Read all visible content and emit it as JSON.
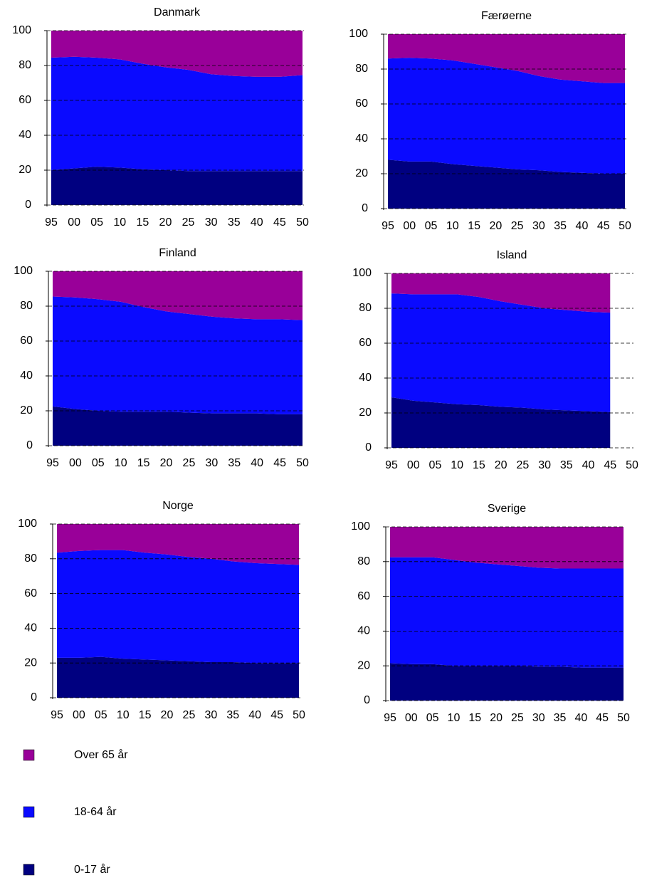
{
  "chart_data": [
    {
      "type": "stacked_area",
      "title": "Danmark",
      "categories": [
        "95",
        "00",
        "05",
        "10",
        "15",
        "20",
        "25",
        "30",
        "35",
        "40",
        "45",
        "50"
      ],
      "series": [
        {
          "name": "0-17 år",
          "color": "#000080",
          "values": [
            20,
            21,
            22,
            21.5,
            20.5,
            20,
            19.5,
            19.5,
            19.5,
            19.5,
            19.5,
            19.5
          ]
        },
        {
          "name": "18-64 år",
          "color": "#0a0aff",
          "values": [
            64.5,
            64,
            62.5,
            62,
            60.5,
            59,
            58,
            55.5,
            54.5,
            54,
            54,
            55
          ]
        },
        {
          "name": "Over 65 år",
          "color": "#990099",
          "values": [
            15.5,
            15,
            15.5,
            16.5,
            19,
            21,
            22.5,
            25,
            26,
            26.5,
            26.5,
            25.5
          ]
        }
      ],
      "ylim": [
        0,
        100
      ],
      "yticks": [
        0,
        20,
        40,
        60,
        80,
        100
      ],
      "grid": true
    },
    {
      "type": "stacked_area",
      "title": "Færøerne",
      "categories": [
        "95",
        "00",
        "05",
        "10",
        "15",
        "20",
        "25",
        "30",
        "35",
        "40",
        "45",
        "50"
      ],
      "series": [
        {
          "name": "0-17 år",
          "color": "#000080",
          "values": [
            28,
            27,
            27,
            25.5,
            24.5,
            23.5,
            22.5,
            22,
            21,
            20.5,
            20,
            20
          ]
        },
        {
          "name": "18-64 år",
          "color": "#0a0aff",
          "values": [
            58,
            59.5,
            59,
            59.5,
            58.5,
            57.5,
            56.5,
            54,
            53,
            52.5,
            52,
            52
          ]
        },
        {
          "name": "Over 65 år",
          "color": "#990099",
          "values": [
            14,
            13.5,
            14,
            15,
            17,
            19,
            21,
            24,
            26,
            27,
            28,
            28
          ]
        }
      ],
      "ylim": [
        0,
        100
      ],
      "yticks": [
        0,
        20,
        40,
        60,
        80,
        100
      ],
      "grid": true
    },
    {
      "type": "stacked_area",
      "title": "Finland",
      "categories": [
        "95",
        "00",
        "05",
        "10",
        "15",
        "20",
        "25",
        "30",
        "35",
        "40",
        "45",
        "50"
      ],
      "series": [
        {
          "name": "0-17 år",
          "color": "#000080",
          "values": [
            22.5,
            21,
            20,
            19.5,
            19.5,
            19.5,
            19,
            18.5,
            18.5,
            18.5,
            18,
            18
          ]
        },
        {
          "name": "18-64 år",
          "color": "#0a0aff",
          "values": [
            63,
            64,
            64,
            63,
            60,
            57.5,
            56.5,
            55.5,
            54.5,
            54,
            54.5,
            54
          ]
        },
        {
          "name": "Over 65 år",
          "color": "#990099",
          "values": [
            14.5,
            15,
            16,
            17.5,
            20.5,
            23,
            24.5,
            26,
            27,
            27.5,
            27.5,
            28
          ]
        }
      ],
      "ylim": [
        0,
        100
      ],
      "yticks": [
        0,
        20,
        40,
        60,
        80,
        100
      ],
      "grid": true
    },
    {
      "type": "stacked_area",
      "title": "Island",
      "categories": [
        "95",
        "00",
        "05",
        "10",
        "15",
        "20",
        "25",
        "30",
        "35",
        "40",
        "45",
        "50"
      ],
      "series": [
        {
          "name": "0-17 år",
          "color": "#000080",
          "values": [
            29,
            27,
            26,
            25,
            24.5,
            23.5,
            23,
            22,
            21.5,
            21,
            20.5,
            null
          ]
        },
        {
          "name": "18-64 år",
          "color": "#0a0aff",
          "values": [
            59.5,
            61,
            62,
            63,
            62,
            60.5,
            59,
            58,
            57.5,
            57,
            57,
            null
          ]
        },
        {
          "name": "Over 65 år",
          "color": "#990099",
          "values": [
            11.5,
            12,
            12,
            12,
            13.5,
            16,
            18,
            20,
            21,
            22,
            22.5,
            null
          ]
        }
      ],
      "ylim": [
        0,
        100
      ],
      "yticks": [
        0,
        20,
        40,
        60,
        80,
        100
      ],
      "grid": true
    },
    {
      "type": "stacked_area",
      "title": "Norge",
      "categories": [
        "95",
        "00",
        "05",
        "10",
        "15",
        "20",
        "25",
        "30",
        "35",
        "40",
        "45",
        "50"
      ],
      "series": [
        {
          "name": "0-17 år",
          "color": "#000080",
          "values": [
            23,
            23,
            23.5,
            22.5,
            22,
            21.5,
            21,
            20.5,
            20.5,
            20,
            20,
            20
          ]
        },
        {
          "name": "18-64 år",
          "color": "#0a0aff",
          "values": [
            60.5,
            61.5,
            61.5,
            62.5,
            61.5,
            61,
            60,
            59.5,
            58,
            57.5,
            57,
            56.5
          ]
        },
        {
          "name": "Over 65 år",
          "color": "#990099",
          "values": [
            16.5,
            15.5,
            15,
            15,
            16.5,
            17.5,
            19,
            20,
            21.5,
            22.5,
            23,
            23.5
          ]
        }
      ],
      "ylim": [
        0,
        100
      ],
      "yticks": [
        0,
        20,
        40,
        60,
        80,
        100
      ],
      "grid": true
    },
    {
      "type": "stacked_area",
      "title": "Sverige",
      "categories": [
        "95",
        "00",
        "05",
        "10",
        "15",
        "20",
        "25",
        "30",
        "35",
        "40",
        "45",
        "50"
      ],
      "series": [
        {
          "name": "0-17 år",
          "color": "#000080",
          "values": [
            21.5,
            21,
            21,
            20,
            20,
            20,
            20,
            19.5,
            19.5,
            19,
            19,
            19
          ]
        },
        {
          "name": "18-64 år",
          "color": "#0a0aff",
          "values": [
            61,
            61.5,
            61.5,
            61,
            59.5,
            58.5,
            57.5,
            57,
            56.5,
            57,
            57,
            57
          ]
        },
        {
          "name": "Over 65 år",
          "color": "#990099",
          "values": [
            17.5,
            17.5,
            17.5,
            19,
            20.5,
            21.5,
            22.5,
            23.5,
            24,
            24,
            24,
            24
          ]
        }
      ],
      "ylim": [
        0,
        100
      ],
      "yticks": [
        0,
        20,
        40,
        60,
        80,
        100
      ],
      "grid": true
    }
  ]
}
